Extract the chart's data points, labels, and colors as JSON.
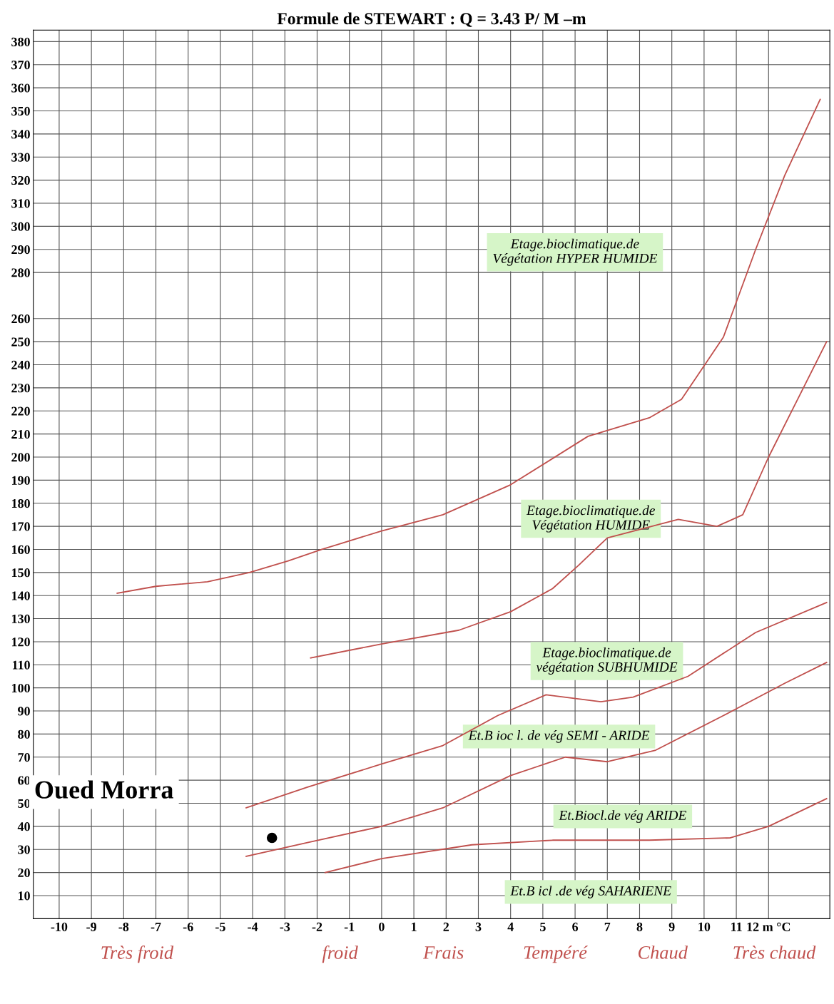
{
  "chart_data": {
    "type": "line",
    "title": "Formule de STEWART : Q = 3.43 P/ M –m",
    "xlim": [
      -10.8,
      13.9
    ],
    "ylim": [
      0,
      385
    ],
    "xticks": [
      -10,
      -9,
      -8,
      -7,
      -6,
      -5,
      -4,
      -3,
      -2,
      -1,
      0,
      1,
      2,
      3,
      4,
      5,
      6,
      7,
      8,
      9,
      10,
      11,
      {
        "value": 12,
        "label": "12 m °C"
      }
    ],
    "yticks": [
      10,
      20,
      30,
      40,
      50,
      60,
      70,
      80,
      90,
      100,
      110,
      120,
      130,
      140,
      150,
      160,
      170,
      180,
      190,
      200,
      210,
      220,
      230,
      240,
      250,
      260,
      280,
      290,
      300,
      310,
      320,
      330,
      340,
      350,
      360,
      370,
      380
    ],
    "grid": true,
    "series": [
      {
        "color": "#c0504d",
        "x": [
          -8.2,
          -7,
          -5.4,
          -4.1,
          -2.9,
          -1.85,
          0,
          1.9,
          4,
          6.4,
          8.3,
          9.3,
          10.6,
          11.6,
          12.5,
          13.6
        ],
        "values": [
          141,
          144,
          146,
          150,
          155,
          160,
          168,
          175,
          188,
          209,
          217,
          225,
          252,
          290,
          322,
          355
        ]
      },
      {
        "color": "#c0504d",
        "x": [
          -2.2,
          0,
          2.4,
          4,
          5.3,
          6.1,
          7,
          9.2,
          10.4,
          11.2,
          12,
          12.9,
          13.8
        ],
        "values": [
          113,
          119,
          125,
          133,
          143,
          153,
          165,
          173,
          170,
          175,
          200,
          225,
          250
        ]
      },
      {
        "color": "#c0504d",
        "x": [
          -4.2,
          -2.3,
          0,
          1.9,
          3.6,
          5.1,
          6.8,
          7.8,
          9.5,
          11.6,
          13.8
        ],
        "values": [
          48,
          57,
          67,
          75,
          88,
          97,
          94,
          96,
          105,
          124,
          137
        ]
      },
      {
        "color": "#c0504d",
        "x": [
          -4.2,
          -2.3,
          0,
          1.9,
          4,
          5.7,
          7,
          8.5,
          10.6,
          12.5,
          13.8
        ],
        "values": [
          27,
          33,
          40,
          48,
          62,
          70,
          68,
          73,
          88,
          102,
          111
        ]
      },
      {
        "color": "#c0504d",
        "x": [
          -1.75,
          0,
          2.8,
          5.3,
          8.3,
          10.8,
          12,
          13.8
        ],
        "values": [
          20,
          26,
          32,
          34,
          34,
          35,
          40,
          52
        ]
      },
      {
        "type": "scatter",
        "name": "Oued Morra",
        "color": "#000000",
        "x": [
          -3.4
        ],
        "values": [
          35
        ]
      }
    ],
    "annotations": [
      "Etage.bioclimatique.de\nVégétation HYPER HUMIDE",
      "Etage.bioclimatique.de\nVégétation HUMIDE",
      "Etage.bioclimatique.de\nvégétation SUBHUMIDE",
      "Et.B ioc l. de vég SEMI - ARIDE",
      "Et.Biocl.de vég ARIDE",
      "Et.B icl .de vég SAHARIENE",
      "Très froid",
      "froid",
      "Frais",
      "Tempéré",
      "Chaud",
      "Très chaud"
    ]
  }
}
